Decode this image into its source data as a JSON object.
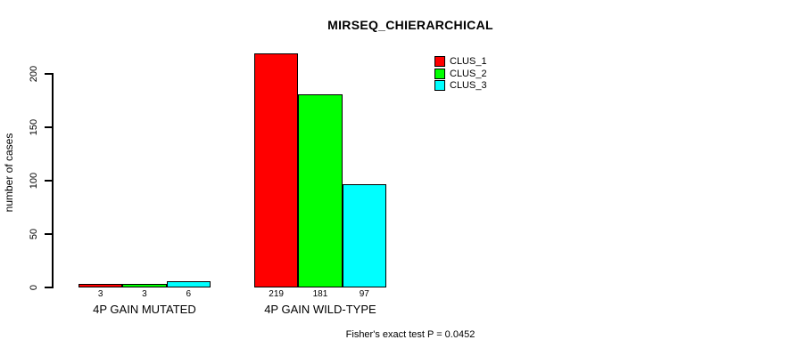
{
  "chart_data": {
    "type": "bar",
    "title": "MIRSEQ_CHIERARCHICAL",
    "categories": [
      "4P GAIN MUTATED",
      "4P GAIN WILD-TYPE"
    ],
    "series": [
      {
        "name": "CLUS_1",
        "color": "#FF0000",
        "values": [
          3,
          219
        ]
      },
      {
        "name": "CLUS_2",
        "color": "#00FF00",
        "values": [
          3,
          181
        ]
      },
      {
        "name": "CLUS_3",
        "color": "#00FFFF",
        "values": [
          6,
          97
        ]
      }
    ],
    "xlabel": "",
    "ylabel": "number of cases",
    "yticks": [
      0,
      50,
      100,
      150,
      200
    ],
    "ylim": [
      0,
      220
    ],
    "bar_value_labels": true,
    "grid": false,
    "legend_position": "top-right",
    "annotation": "Fisher's exact test P = 0.0452"
  }
}
